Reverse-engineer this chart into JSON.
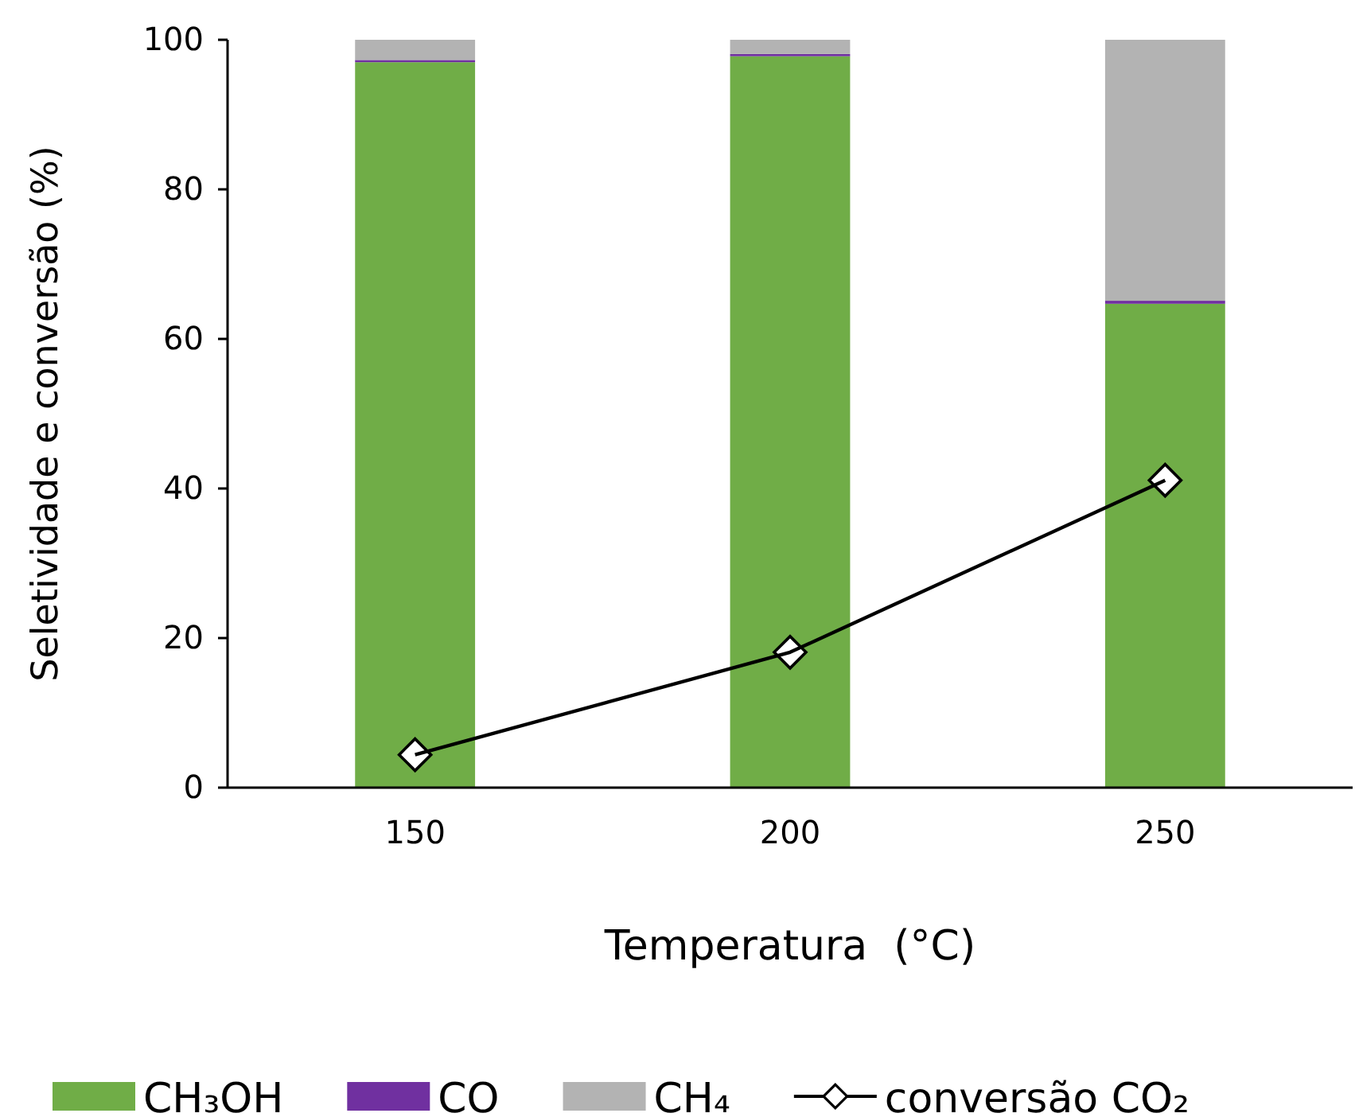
{
  "chart_data": {
    "type": "bar",
    "stacked": true,
    "xlabel": "Temperatura  (°C)",
    "ylabel": "Seletividade e conversão (%)",
    "categories": [
      "150",
      "200",
      "250"
    ],
    "series": [
      {
        "name": "CH₃OH",
        "color": "#70ad47",
        "values": [
          97.0,
          97.8,
          64.7
        ]
      },
      {
        "name": "CO",
        "color": "#7030a0",
        "values": [
          0.3,
          0.3,
          0.4
        ]
      },
      {
        "name": "CH₄",
        "color": "#b3b3b3",
        "values": [
          2.7,
          1.9,
          34.9
        ]
      },
      {
        "name": "conversão CO₂",
        "type": "line",
        "color": "#000000",
        "marker": "diamond",
        "values": [
          4.4,
          18.1,
          41.1
        ]
      }
    ],
    "ylim": [
      0,
      100
    ],
    "yticks": [
      0,
      20,
      40,
      60,
      80,
      100
    ],
    "grid": false,
    "legend": "bottom"
  }
}
